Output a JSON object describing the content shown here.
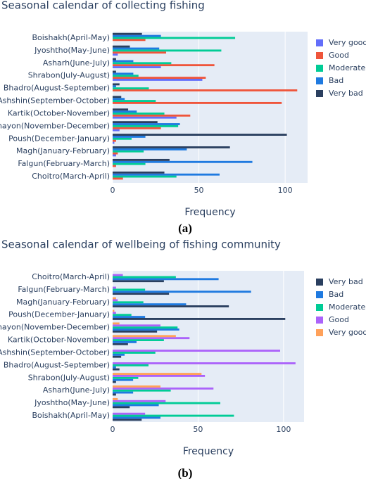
{
  "chart_data": [
    {
      "type": "bar",
      "orientation": "h",
      "title": "Seasonal calendar of collecting fishing",
      "xlabel": "Frequency",
      "caption": "(a)",
      "grid": true,
      "categories": [
        "Choitro(March-April)",
        "Falgun(February-March)",
        "Magh(January-February)",
        "Poush(December-January)",
        "Ogrohayon(November-December)",
        "Kartik(October-November)",
        "Ashshin(September-October)",
        "Bhadro(August-September)",
        "Shrabon(July-August)",
        "Asharh(June-July)",
        "Jyoshtho(May-June)",
        "Boishakh(April-May)"
      ],
      "series": [
        {
          "name": "Very good",
          "color": "#636efa",
          "values": [
            0,
            0,
            2,
            1,
            4,
            37,
            0,
            0,
            52,
            28,
            3,
            0
          ]
        },
        {
          "name": "Good",
          "color": "#ef553b",
          "values": [
            6,
            2,
            3,
            2,
            28,
            45,
            98,
            107,
            54,
            59,
            31,
            19
          ]
        },
        {
          "name": "Moderate",
          "color": "#00cc96",
          "values": [
            37,
            19,
            18,
            11,
            38,
            30,
            25,
            21,
            15,
            34,
            63,
            71
          ]
        },
        {
          "name": "Bad",
          "color": "#1f7ae0",
          "values": [
            62,
            81,
            43,
            19,
            39,
            14,
            7,
            2,
            12,
            12,
            27,
            28
          ]
        },
        {
          "name": "Very bad",
          "color": "#2a3f5f",
          "values": [
            30,
            33,
            68,
            101,
            26,
            9,
            5,
            4,
            2,
            2,
            10,
            17
          ]
        }
      ],
      "xlim": [
        0,
        113
      ],
      "xticks": [
        0,
        50,
        100
      ]
    },
    {
      "type": "bar",
      "orientation": "h",
      "title": "Seasonal calendar of wellbeing of fishing community",
      "xlabel": "Frequency",
      "caption": "(b)",
      "grid": true,
      "categories": [
        "Boishakh(April-May)",
        "Jyoshtho(May-June)",
        "Asharh(June-July)",
        "Shrabon(July-August)",
        "Bhadro(August-September)",
        "Ashshin(September-October)",
        "Kartik(October-November)",
        "Ogrohayon(November-December)",
        "Poush(December-January)",
        "Magh(January-February)",
        "Falgun(February-March)",
        "Choitro(March-April)"
      ],
      "series": [
        {
          "name": "Very bad",
          "color": "#2a3f5f",
          "values": [
            17,
            10,
            2,
            2,
            4,
            5,
            9,
            26,
            101,
            68,
            33,
            30
          ]
        },
        {
          "name": "Bad",
          "color": "#1f7ae0",
          "values": [
            28,
            27,
            12,
            12,
            2,
            7,
            14,
            39,
            19,
            43,
            81,
            62
          ]
        },
        {
          "name": "Moderate",
          "color": "#00cc96",
          "values": [
            71,
            63,
            34,
            15,
            21,
            25,
            30,
            38,
            11,
            18,
            19,
            37
          ]
        },
        {
          "name": "Good",
          "color": "#ab63fa",
          "values": [
            19,
            31,
            59,
            54,
            107,
            98,
            45,
            28,
            2,
            3,
            2,
            6
          ]
        },
        {
          "name": "Very good",
          "color": "#ffa15a",
          "values": [
            0,
            3,
            28,
            52,
            0,
            0,
            37,
            4,
            1,
            2,
            0,
            0
          ]
        }
      ],
      "xlim": [
        0,
        112
      ],
      "xticks": [
        0,
        50,
        100
      ]
    }
  ]
}
